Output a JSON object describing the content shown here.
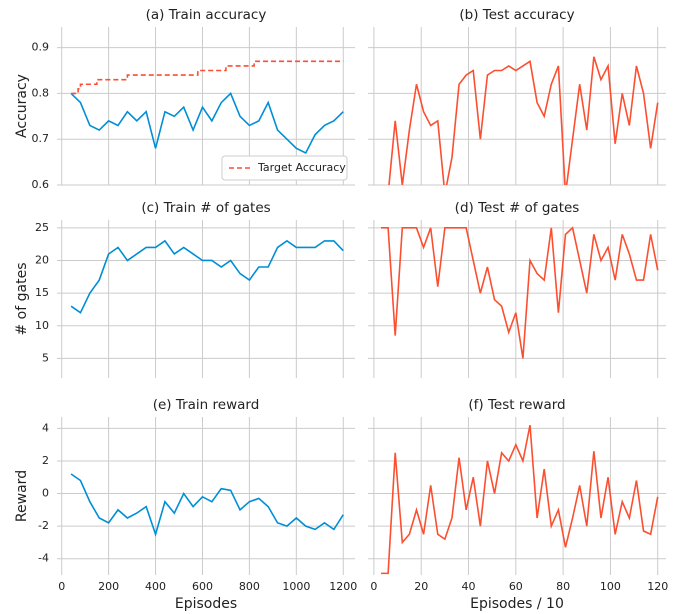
{
  "chart_data": [
    {
      "type": "line",
      "title": "(a) Train accuracy",
      "ylabel": "Accuracy",
      "x": [
        40,
        80,
        120,
        160,
        200,
        240,
        280,
        320,
        360,
        400,
        440,
        480,
        520,
        560,
        600,
        640,
        680,
        720,
        760,
        800,
        840,
        880,
        920,
        960,
        1000,
        1040,
        1080,
        1120,
        1160,
        1200
      ],
      "series": [
        {
          "color": "#008fd5",
          "values": [
            0.8,
            0.78,
            0.73,
            0.72,
            0.74,
            0.73,
            0.76,
            0.74,
            0.76,
            0.68,
            0.76,
            0.75,
            0.77,
            0.72,
            0.77,
            0.74,
            0.78,
            0.8,
            0.75,
            0.73,
            0.74,
            0.78,
            0.72,
            0.7,
            0.68,
            0.67,
            0.71,
            0.73,
            0.74,
            0.76
          ]
        },
        {
          "name": "Target Accuracy",
          "color": "#fc4f30",
          "linestyle": "dashed",
          "step": "post",
          "x": [
            40,
            70,
            80,
            150,
            280,
            580,
            700,
            820,
            1200
          ],
          "values": [
            0.8,
            0.81,
            0.82,
            0.83,
            0.84,
            0.85,
            0.86,
            0.87,
            0.87
          ]
        }
      ],
      "xlim": [
        -20,
        1250
      ],
      "xticks": [
        0,
        200,
        400,
        600,
        800,
        1000,
        1200
      ],
      "ylim": [
        0.6,
        0.945
      ],
      "yticks": [
        0.6,
        0.7,
        0.8,
        0.9
      ],
      "grid": true,
      "legend": "lower right"
    },
    {
      "type": "line",
      "title": "(b) Test accuracy",
      "x": [
        3,
        6,
        9,
        12,
        15,
        18,
        21,
        24,
        27,
        30,
        33,
        36,
        39,
        42,
        45,
        48,
        51,
        54,
        57,
        60,
        63,
        66,
        69,
        72,
        75,
        78,
        81,
        84,
        87,
        90,
        93,
        96,
        99,
        102,
        105,
        108,
        111,
        114,
        117,
        120
      ],
      "series": [
        {
          "color": "#fc4f30",
          "values": [
            0.52,
            0.58,
            0.74,
            0.6,
            0.72,
            0.82,
            0.76,
            0.73,
            0.74,
            0.58,
            0.66,
            0.82,
            0.84,
            0.85,
            0.7,
            0.84,
            0.85,
            0.85,
            0.86,
            0.85,
            0.86,
            0.87,
            0.78,
            0.75,
            0.82,
            0.86,
            0.58,
            0.7,
            0.82,
            0.72,
            0.88,
            0.83,
            0.86,
            0.69,
            0.8,
            0.73,
            0.86,
            0.8,
            0.68,
            0.78
          ]
        }
      ],
      "xlim": [
        -2.5,
        123.5
      ],
      "xticks": [
        0,
        20,
        40,
        60,
        80,
        100,
        120
      ],
      "ylim": [
        0.6,
        0.945
      ],
      "yticks": [
        0.6,
        0.7,
        0.8,
        0.9
      ],
      "grid": true
    },
    {
      "type": "line",
      "title": "(c) Train # of gates",
      "ylabel": "# of gates",
      "x": [
        40,
        80,
        120,
        160,
        200,
        240,
        280,
        320,
        360,
        400,
        440,
        480,
        520,
        560,
        600,
        640,
        680,
        720,
        760,
        800,
        840,
        880,
        920,
        960,
        1000,
        1040,
        1080,
        1120,
        1160,
        1200
      ],
      "series": [
        {
          "color": "#008fd5",
          "values": [
            13,
            12,
            15,
            17,
            21,
            22,
            20,
            21,
            22,
            22,
            23,
            21,
            22,
            21,
            20,
            20,
            19,
            20,
            18,
            17,
            19,
            19,
            22,
            23,
            22,
            22,
            22,
            23,
            23,
            21.5
          ]
        }
      ],
      "xlim": [
        -20,
        1250
      ],
      "xticks": [
        0,
        200,
        400,
        600,
        800,
        1000,
        1200
      ],
      "ylim": [
        2,
        26.2
      ],
      "yticks": [
        5,
        10,
        15,
        20,
        25
      ],
      "grid": true
    },
    {
      "type": "line",
      "title": "(d) Test # of gates",
      "x": [
        3,
        6,
        9,
        12,
        15,
        18,
        21,
        24,
        27,
        30,
        33,
        36,
        39,
        42,
        45,
        48,
        51,
        54,
        57,
        60,
        63,
        66,
        69,
        72,
        75,
        78,
        81,
        84,
        87,
        90,
        93,
        96,
        99,
        102,
        105,
        108,
        111,
        114,
        117,
        120
      ],
      "series": [
        {
          "color": "#fc4f30",
          "values": [
            25,
            25,
            8.5,
            25,
            25,
            25,
            22,
            25,
            16,
            25,
            25,
            25,
            25,
            20,
            15,
            19,
            14,
            13,
            9,
            12,
            5,
            20,
            18,
            17,
            25,
            12,
            24,
            25,
            20,
            15,
            24,
            20,
            22,
            17,
            24,
            21,
            17,
            17,
            24,
            18.5
          ]
        }
      ],
      "xlim": [
        -2.5,
        123.5
      ],
      "xticks": [
        0,
        20,
        40,
        60,
        80,
        100,
        120
      ],
      "ylim": [
        2,
        26.2
      ],
      "yticks": [
        5,
        10,
        15,
        20,
        25
      ],
      "grid": true
    },
    {
      "type": "line",
      "title": "(e) Train reward",
      "ylabel": "Reward",
      "xlabel": "Episodes",
      "x": [
        40,
        80,
        120,
        160,
        200,
        240,
        280,
        320,
        360,
        400,
        440,
        480,
        520,
        560,
        600,
        640,
        680,
        720,
        760,
        800,
        840,
        880,
        920,
        960,
        1000,
        1040,
        1080,
        1120,
        1160,
        1200
      ],
      "series": [
        {
          "color": "#008fd5",
          "values": [
            1.2,
            0.8,
            -0.5,
            -1.5,
            -1.8,
            -1.0,
            -1.5,
            -1.2,
            -0.8,
            -2.5,
            -0.5,
            -1.2,
            0.0,
            -0.8,
            -0.2,
            -0.5,
            0.3,
            0.2,
            -1.0,
            -0.5,
            -0.3,
            -0.8,
            -1.8,
            -2.0,
            -1.5,
            -2.0,
            -2.2,
            -1.8,
            -2.2,
            -1.3
          ]
        }
      ],
      "xlim": [
        -20,
        1250
      ],
      "xticks": [
        0,
        200,
        400,
        600,
        800,
        1000,
        1200
      ],
      "ylim": [
        -5,
        4.7
      ],
      "yticks": [
        -4,
        -2,
        0,
        2,
        4
      ],
      "grid": true
    },
    {
      "type": "line",
      "title": "(f) Test reward",
      "xlabel": "Episodes / 10",
      "x": [
        3,
        6,
        9,
        12,
        15,
        18,
        21,
        24,
        27,
        30,
        33,
        36,
        39,
        42,
        45,
        48,
        51,
        54,
        57,
        60,
        63,
        66,
        69,
        72,
        75,
        78,
        81,
        84,
        87,
        90,
        93,
        96,
        99,
        102,
        105,
        108,
        111,
        114,
        117,
        120
      ],
      "series": [
        {
          "color": "#fc4f30",
          "values": [
            -4.9,
            -4.9,
            2.5,
            -3.0,
            -2.5,
            -1.0,
            -2.5,
            0.5,
            -2.5,
            -2.8,
            -1.5,
            2.2,
            -1.0,
            1.0,
            -2.0,
            2.0,
            0.0,
            2.5,
            2.0,
            3.0,
            2.0,
            4.2,
            -1.5,
            1.5,
            -2.0,
            -1.0,
            -3.3,
            -1.5,
            0.5,
            -2.0,
            2.6,
            -1.5,
            1.0,
            -2.5,
            -0.5,
            -1.5,
            0.8,
            -2.3,
            -2.5,
            -0.2
          ]
        }
      ],
      "xlim": [
        -2.5,
        123.5
      ],
      "xticks": [
        0,
        20,
        40,
        60,
        80,
        100,
        120
      ],
      "ylim": [
        -5,
        4.7
      ],
      "yticks": [
        -4,
        -2,
        0,
        2,
        4
      ],
      "grid": true
    }
  ]
}
